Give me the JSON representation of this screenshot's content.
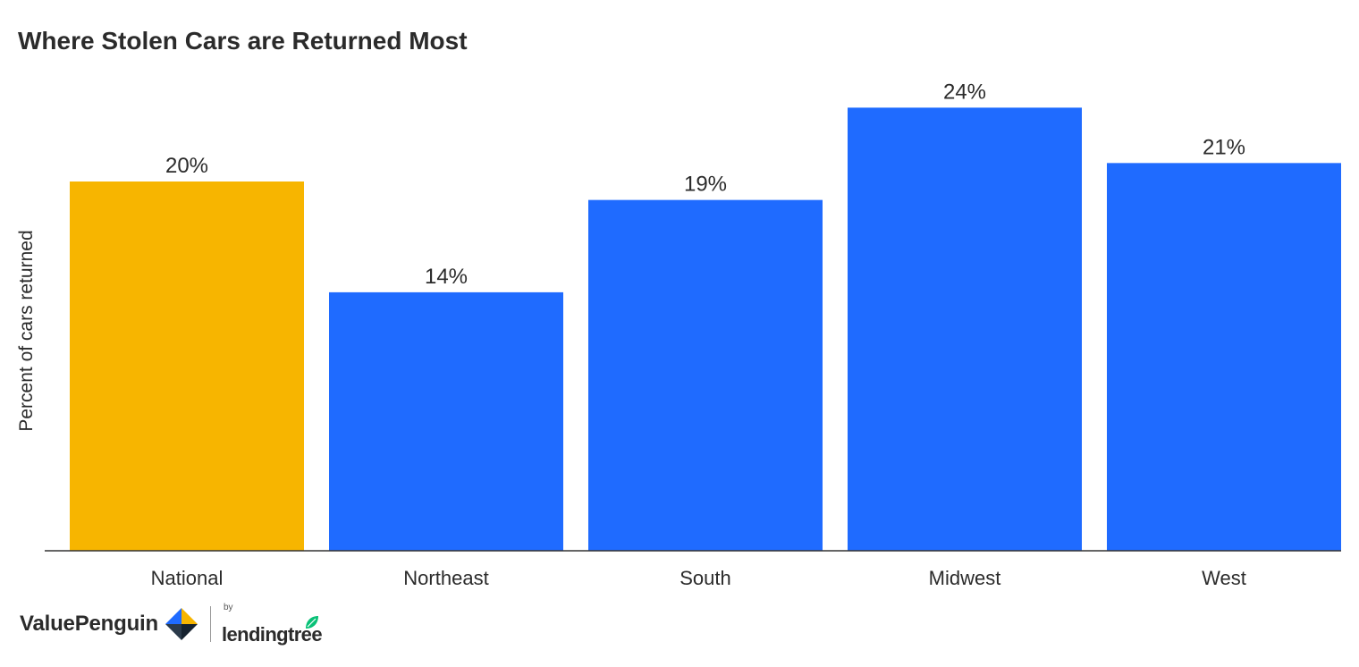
{
  "chart_data": {
    "type": "bar",
    "title": "Where Stolen Cars are Returned Most",
    "xlabel": "",
    "ylabel": "Percent of cars returned",
    "categories": [
      "National",
      "Northeast",
      "South",
      "Midwest",
      "West"
    ],
    "values": [
      20,
      14,
      19,
      24,
      21
    ],
    "value_labels": [
      "20%",
      "14%",
      "19%",
      "24%",
      "21%"
    ],
    "unit": "%",
    "ylim": [
      0,
      24
    ],
    "grid": false,
    "legend": "none",
    "colors": {
      "highlight": "#F7B500",
      "default": "#1F6BFF",
      "highlight_categories": [
        "National"
      ]
    }
  },
  "branding": {
    "primary": "ValuePenguin",
    "by": "by",
    "secondary": "lendingtree",
    "mark_icon": "valuepenguin-logo-icon",
    "leaf_icon": "lendingtree-leaf-icon"
  }
}
